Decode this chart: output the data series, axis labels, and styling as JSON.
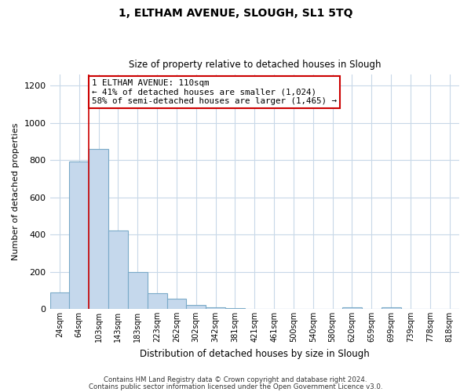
{
  "title": "1, ELTHAM AVENUE, SLOUGH, SL1 5TQ",
  "subtitle": "Size of property relative to detached houses in Slough",
  "xlabel": "Distribution of detached houses by size in Slough",
  "ylabel": "Number of detached properties",
  "bar_labels": [
    "24sqm",
    "64sqm",
    "103sqm",
    "143sqm",
    "183sqm",
    "223sqm",
    "262sqm",
    "302sqm",
    "342sqm",
    "381sqm",
    "421sqm",
    "461sqm",
    "500sqm",
    "540sqm",
    "580sqm",
    "620sqm",
    "659sqm",
    "699sqm",
    "739sqm",
    "778sqm",
    "818sqm"
  ],
  "bar_values": [
    90,
    790,
    860,
    420,
    200,
    85,
    55,
    20,
    8,
    3,
    2,
    1,
    0,
    0,
    0,
    10,
    0,
    10,
    0,
    0,
    0
  ],
  "bar_color": "#c5d8ec",
  "bar_edge_color": "#7aaac8",
  "property_line_x": 1.5,
  "property_line_color": "#cc0000",
  "annotation_line1": "1 ELTHAM AVENUE: 110sqm",
  "annotation_line2": "← 41% of detached houses are smaller (1,024)",
  "annotation_line3": "58% of semi-detached houses are larger (1,465) →",
  "annotation_box_color": "#cc0000",
  "ylim": [
    0,
    1260
  ],
  "yticks": [
    0,
    200,
    400,
    600,
    800,
    1000,
    1200
  ],
  "footer_line1": "Contains HM Land Registry data © Crown copyright and database right 2024.",
  "footer_line2": "Contains public sector information licensed under the Open Government Licence v3.0.",
  "bg_color": "#ffffff",
  "grid_color": "#c8d8e8"
}
